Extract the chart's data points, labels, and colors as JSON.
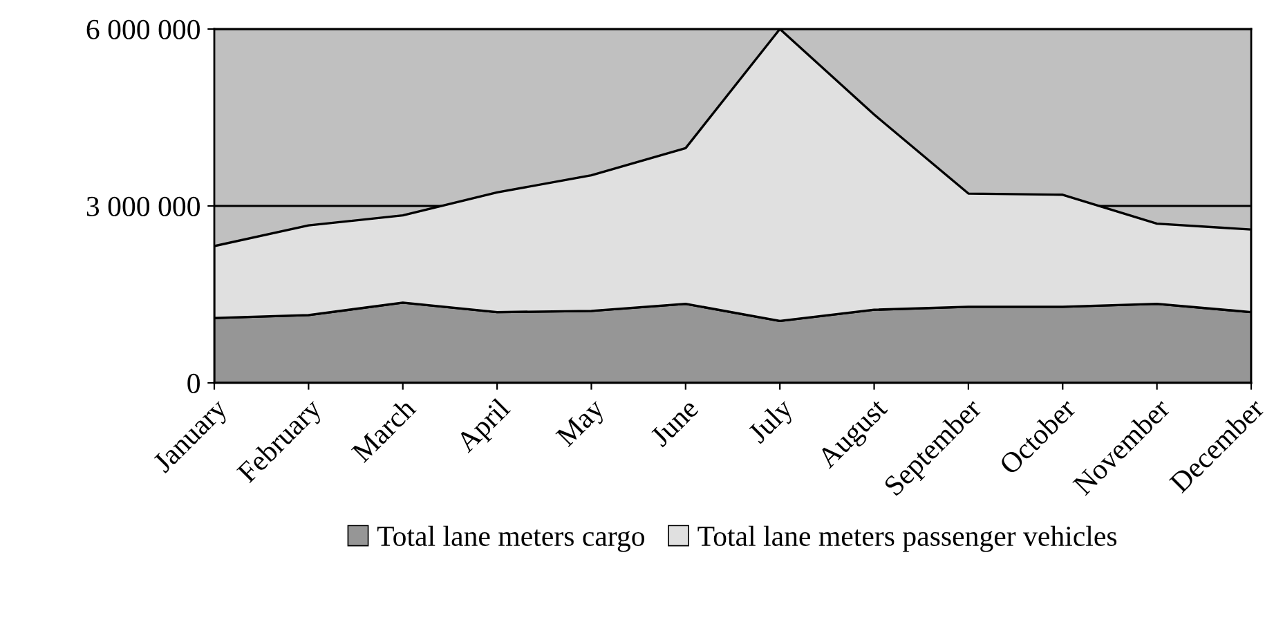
{
  "chart_data": {
    "type": "area",
    "stacked": true,
    "categories": [
      "January",
      "February",
      "March",
      "April",
      "May",
      "June",
      "July",
      "August",
      "September",
      "October",
      "November",
      "December"
    ],
    "series": [
      {
        "name": "Total lane meters cargo",
        "color": "#969696",
        "values": [
          1100000,
          1150000,
          1360000,
          1200000,
          1220000,
          1340000,
          1050000,
          1240000,
          1290000,
          1290000,
          1340000,
          1200000
        ]
      },
      {
        "name": "Total lane meters passenger vehicles",
        "color": "#e0e0e0",
        "values": [
          1220000,
          1520000,
          1480000,
          2030000,
          2300000,
          2640000,
          4950000,
          3310000,
          1920000,
          1900000,
          1360000,
          1400000
        ]
      }
    ],
    "ylim": [
      0,
      6000000
    ],
    "yticks": [
      0,
      {
        "value": 3000000,
        "label": "3 000 000"
      },
      {
        "value": 6000000,
        "label": "6 000 000"
      }
    ],
    "grid": "y",
    "legend": "bottom"
  }
}
